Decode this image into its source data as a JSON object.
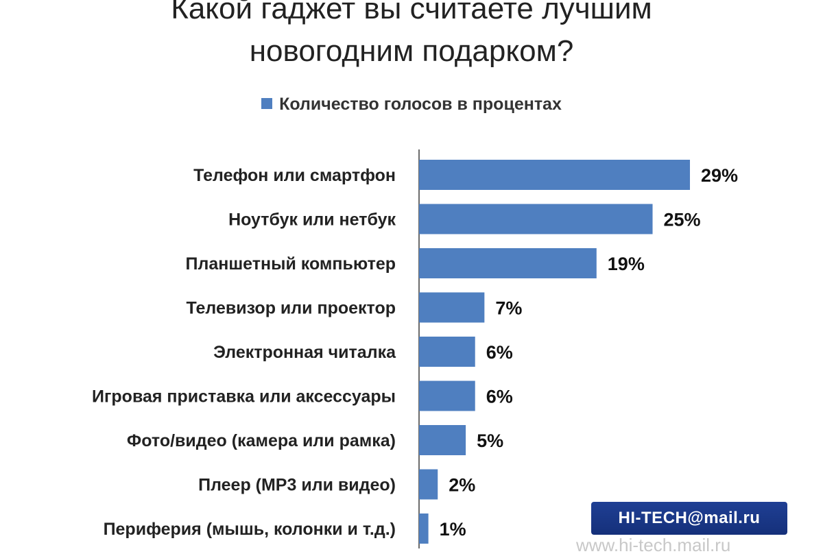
{
  "chart_data": {
    "type": "bar",
    "orientation": "horizontal",
    "title": "Какой гаджет вы считаете лучшим новогодним подарком?",
    "title_lines": [
      "Какой гаджет вы считаете лучшим",
      "новогодним  подарком?"
    ],
    "legend": "Количество голосов в процентах",
    "legend_position": "top",
    "bar_color": "#4f7fc0",
    "categories": [
      "Телефон или смартфон",
      "Ноутбук или нетбук",
      "Планшетный компьютер",
      "Телевизор или проектор",
      "Электронная читалка",
      "Игровая приставка или аксессуары",
      "Фото/видео (камера или рамка)",
      "Плеер (MP3 или видео)",
      "Периферия (мышь, колонки и т.д.)"
    ],
    "series": [
      {
        "name": "Количество голосов в процентах",
        "values": [
          29,
          25,
          19,
          7,
          6,
          6,
          5,
          2,
          1
        ],
        "labels": [
          "29%",
          "25%",
          "19%",
          "7%",
          "6%",
          "6%",
          "5%",
          "2%",
          "1%"
        ]
      }
    ],
    "xlim": [
      0,
      29
    ],
    "grid": false
  },
  "branding": {
    "logo_text": "HI-TECH@mail.ru",
    "watermark": "www.hi-tech.mail.ru"
  }
}
